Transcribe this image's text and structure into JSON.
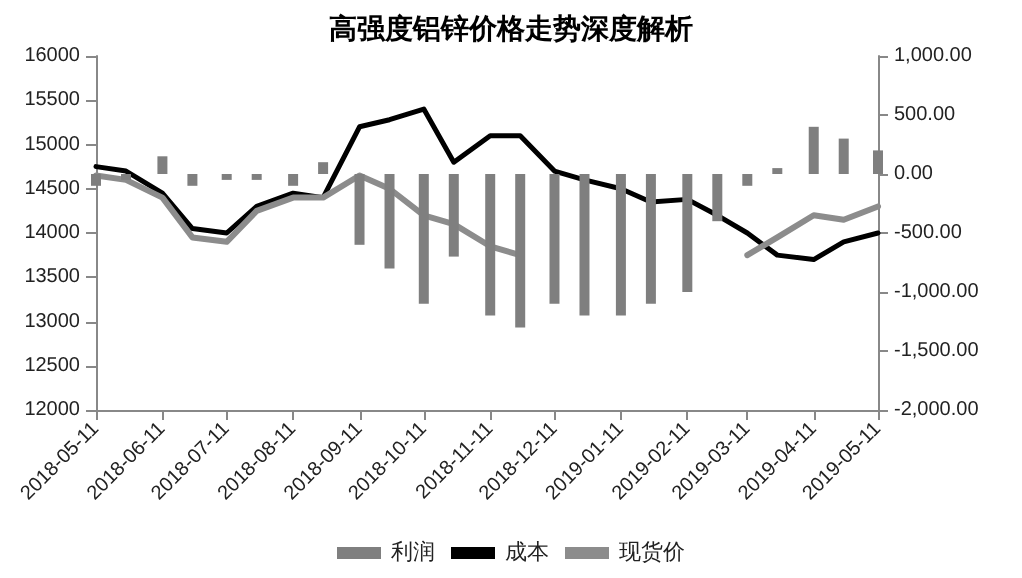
{
  "chart_data": {
    "type": "line",
    "title": "高强度铝锌价格走势深度解析",
    "x": [
      "2018-05-11",
      "2018-05-25",
      "2018-06-11",
      "2018-06-25",
      "2018-07-11",
      "2018-07-25",
      "2018-08-11",
      "2018-08-25",
      "2018-09-11",
      "2018-09-25",
      "2018-10-11",
      "2018-10-25",
      "2018-11-11",
      "2018-11-25",
      "2018-12-11",
      "2018-12-25",
      "2019-01-11",
      "2019-01-25",
      "2019-02-11",
      "2019-02-25",
      "2019-03-11",
      "2019-03-25",
      "2019-04-11",
      "2019-04-25",
      "2019-05-11"
    ],
    "series": [
      {
        "name": "利润",
        "type": "bar",
        "axis": "y2",
        "color": "#7f7f7f",
        "values": [
          -100,
          -50,
          150,
          -100,
          -50,
          -50,
          -100,
          100,
          -600,
          -800,
          -1100,
          -700,
          -1200,
          -1300,
          -1100,
          -1200,
          -1200,
          -1100,
          -1000,
          -400,
          -100,
          50,
          400,
          300,
          200
        ]
      },
      {
        "name": "成本",
        "color": "#000000",
        "values": [
          14750,
          14700,
          14450,
          14050,
          14000,
          14300,
          14450,
          14400,
          15200,
          15280,
          15400,
          14800,
          15100,
          15100,
          14700,
          14600,
          14500,
          14350,
          14380,
          14200,
          14000,
          13750,
          13700,
          13900,
          14000
        ]
      },
      {
        "name": "现货价",
        "color": "#8c8c8c",
        "values": [
          14650,
          14600,
          14400,
          13950,
          13900,
          14250,
          14400,
          14400,
          14650,
          14500,
          14200,
          14100,
          13850,
          13750,
          null,
          null,
          null,
          null,
          null,
          null,
          13750,
          13950,
          14200,
          14150,
          14300
        ]
      }
    ],
    "xlim": [
      "2018-05-11",
      "2019-05-11"
    ],
    "xticks": [
      "2018-05-11",
      "2018-06-11",
      "2018-07-11",
      "2018-08-11",
      "2018-09-11",
      "2018-10-11",
      "2018-11-11",
      "2018-12-11",
      "2019-01-11",
      "2019-02-11",
      "2019-03-11",
      "2019-04-11",
      "2019-05-11"
    ],
    "ylim": [
      12000,
      16000
    ],
    "yticks": [
      12000,
      12500,
      13000,
      13500,
      14000,
      14500,
      15000,
      15500,
      16000
    ],
    "y2lim": [
      -2000,
      1000
    ],
    "y2ticks": [
      {
        "value": -2000,
        "label": "-2,000.00"
      },
      {
        "value": -1500,
        "label": "-1,500.00"
      },
      {
        "value": -1000,
        "label": "-1,000.00"
      },
      {
        "value": -500,
        "label": "-500.00"
      },
      {
        "value": 0,
        "label": "0.00"
      },
      {
        "value": 500,
        "label": "500.00"
      },
      {
        "value": 1000,
        "label": "1,000.00"
      }
    ],
    "grid": false,
    "legend": "bottom",
    "marker": "none",
    "line_style": "solid"
  }
}
